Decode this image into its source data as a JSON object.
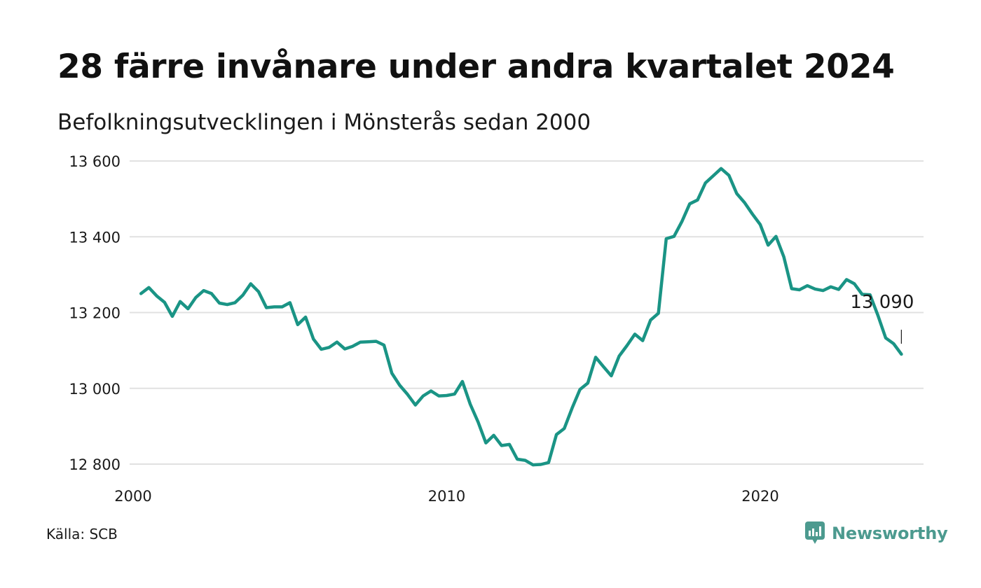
{
  "header": {
    "title": "28 färre invånare under andra kvartalet 2024",
    "subtitle": "Befolkningsutvecklingen i Mönsterås sedan 2000"
  },
  "footer": {
    "source": "Källa: SCB",
    "brand": "Newsworthy",
    "brand_icon": "newsworthy-logo-icon"
  },
  "colors": {
    "line": "#1a9485",
    "grid": "#e1e1e1",
    "brand": "#4c9a8f"
  },
  "chart_data": {
    "type": "line",
    "title": "28 färre invånare under andra kvartalet 2024",
    "subtitle": "Befolkningsutvecklingen i Mönsterås sedan 2000",
    "xlabel": "",
    "ylabel": "",
    "ylim": [
      12800,
      13600
    ],
    "xlim": [
      2000,
      2025
    ],
    "grid": true,
    "y_ticks": [
      13600,
      13400,
      13200,
      13000,
      12800
    ],
    "y_tick_labels": [
      "13 600",
      "13 400",
      "13 200",
      "13 000",
      "12 800"
    ],
    "x_ticks": [
      2000,
      2010,
      2020
    ],
    "x_tick_labels": [
      "2000",
      "2010",
      "2020"
    ],
    "end_label": "13 090",
    "series": [
      {
        "x": [
          2000.25,
          2000.5,
          2000.75,
          2001,
          2001.25,
          2001.5,
          2001.75,
          2002,
          2002.25,
          2002.5,
          2002.75,
          2003,
          2003.25,
          2003.5,
          2003.75,
          2004,
          2004.25,
          2004.5,
          2004.75,
          2005,
          2005.25,
          2005.5,
          2005.75,
          2006,
          2006.25,
          2006.5,
          2006.75,
          2007,
          2007.25,
          2007.5,
          2007.75,
          2008,
          2008.25,
          2008.5,
          2008.75,
          2009,
          2009.25,
          2009.5,
          2009.75,
          2010,
          2010.25,
          2010.5,
          2010.75,
          2011,
          2011.25,
          2011.5,
          2011.75,
          2012,
          2012.25,
          2012.5,
          2012.75,
          2013,
          2013.25,
          2013.5,
          2013.75,
          2014,
          2014.25,
          2014.5,
          2014.75,
          2015,
          2015.25,
          2015.5,
          2015.75,
          2016,
          2016.25,
          2016.5,
          2016.75,
          2017,
          2017.25,
          2017.5,
          2017.75,
          2018,
          2018.25,
          2018.5,
          2018.75,
          2019,
          2019.25,
          2019.5,
          2019.75,
          2020,
          2020.25,
          2020.5,
          2020.75,
          2021,
          2021.25,
          2021.5,
          2021.75,
          2022,
          2022.25,
          2022.5,
          2022.75,
          2023,
          2023.25,
          2023.5,
          2023.75,
          2024,
          2024.25,
          2024.5
        ],
        "values": [
          13250,
          13266,
          13244,
          13227,
          13190,
          13229,
          13210,
          13240,
          13258,
          13250,
          13225,
          13221,
          13226,
          13246,
          13276,
          13255,
          13213,
          13215,
          13215,
          13226,
          13168,
          13188,
          13130,
          13103,
          13108,
          13122,
          13104,
          13111,
          13122,
          13123,
          13124,
          13114,
          13040,
          13008,
          12984,
          12956,
          12980,
          12993,
          12980,
          12981,
          12985,
          13018,
          12958,
          12911,
          12856,
          12876,
          12849,
          12852,
          12813,
          12810,
          12798,
          12799,
          12804,
          12878,
          12894,
          12948,
          12997,
          13014,
          13082,
          13057,
          13033,
          13085,
          13113,
          13143,
          13126,
          13180,
          13198,
          13395,
          13401,
          13440,
          13487,
          13497,
          13542,
          13561,
          13580,
          13562,
          13514,
          13490,
          13460,
          13432,
          13378,
          13401,
          13347,
          13263,
          13260,
          13271,
          13262,
          13258,
          13268,
          13261,
          13287,
          13276,
          13248,
          13247,
          13193,
          13133,
          13118,
          13090
        ]
      }
    ]
  }
}
